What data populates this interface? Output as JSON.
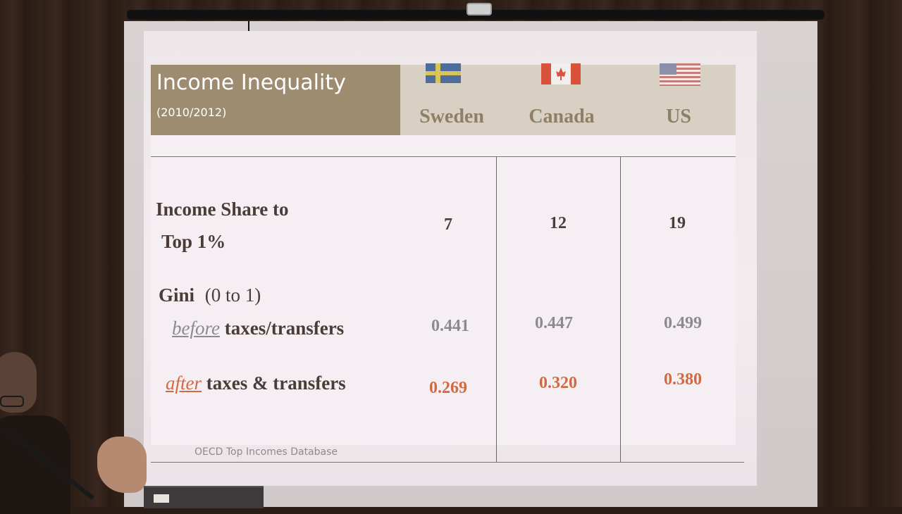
{
  "slide": {
    "title": "Income Inequality",
    "subtitle": "(2010/2012)",
    "countries": [
      {
        "name": "Sweden",
        "flag": "sweden-flag"
      },
      {
        "name": "Canada",
        "flag": "canada-flag"
      },
      {
        "name": "US",
        "flag": "us-flag"
      }
    ],
    "rows": {
      "income_share": {
        "label_line1": "Income Share to",
        "label_line2": "Top 1%",
        "values": [
          "7",
          "12",
          "19"
        ]
      },
      "gini_header": {
        "label": "Gini",
        "range": "(0 to 1)"
      },
      "gini_before": {
        "qualifier": "before",
        "label": " taxes/transfers",
        "values": [
          "0.441",
          "0.447",
          "0.499"
        ]
      },
      "gini_after": {
        "qualifier": "after",
        "label": " taxes & transfers",
        "values": [
          "0.269",
          "0.320",
          "0.380"
        ]
      }
    },
    "source": "OECD Top Incomes Database"
  },
  "colors": {
    "header_bg": "#9d8c70",
    "country_text": "#8f7f66",
    "before_values": "#8b8a93",
    "after_values": "#cf6a43",
    "label_text": "#4a3d38"
  }
}
